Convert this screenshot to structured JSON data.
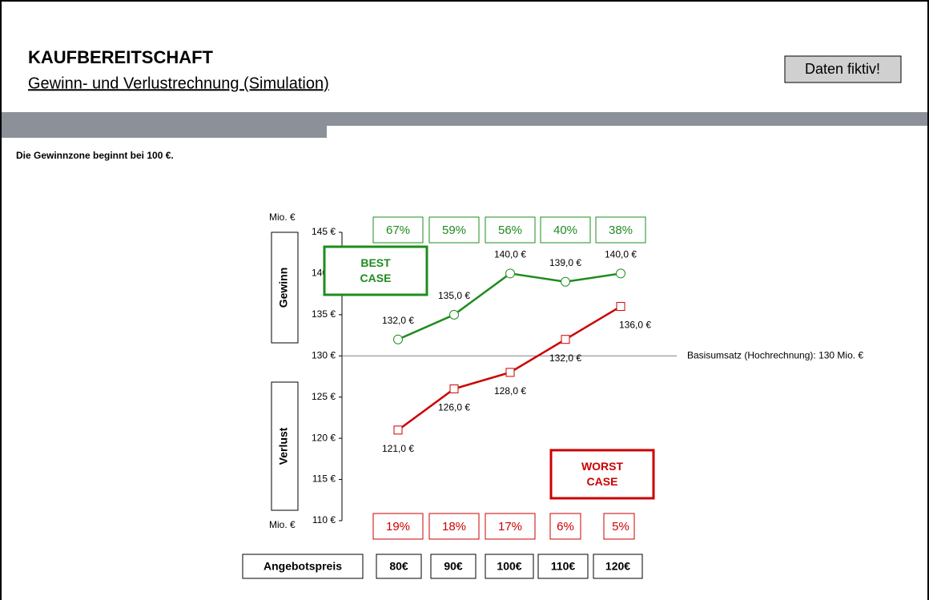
{
  "header": {
    "title": "KAUFBEREITSCHAFT",
    "subtitle": "Gewinn- und Verlustrechnung (Simulation)",
    "badge": "Daten fiktiv!"
  },
  "note": "Die Gewinnzone beginnt bei 100 €.",
  "chart_data": {
    "type": "line",
    "y_label": "Mio. €",
    "x_label": "Angebotspreis",
    "categories": [
      "80€",
      "90€",
      "100€",
      "110€",
      "120€"
    ],
    "ylim": [
      110,
      145
    ],
    "yticks": [
      {
        "value": 110,
        "label": "110 €"
      },
      {
        "value": 115,
        "label": "115 €"
      },
      {
        "value": 120,
        "label": "120 €"
      },
      {
        "value": 125,
        "label": "125 €"
      },
      {
        "value": 130,
        "label": "130 €"
      },
      {
        "value": 135,
        "label": "135 €"
      },
      {
        "value": 140,
        "label": "140 €"
      },
      {
        "value": 145,
        "label": "145 €"
      }
    ],
    "baseline": {
      "value": 130,
      "label": "Basisumsatz (Hochrechnung): 130 Mio. €"
    },
    "zones": {
      "profit": "Gewinn",
      "loss": "Verlust"
    },
    "series": [
      {
        "name": "BEST CASE",
        "color": "#1e8c1e",
        "values": [
          132,
          135,
          140,
          139,
          140
        ],
        "value_labels": [
          "132,0 €",
          "135,0 €",
          "140,0 €",
          "139,0 €",
          "140,0 €"
        ],
        "shares": [
          67,
          59,
          56,
          40,
          38
        ],
        "share_labels": [
          "67%",
          "59%",
          "56%",
          "40%",
          "38%"
        ]
      },
      {
        "name": "WORST CASE",
        "color": "#cc0000",
        "values": [
          121,
          126,
          128,
          132,
          136
        ],
        "value_labels": [
          "121,0 €",
          "126,0 €",
          "128,0 €",
          "132,0 €",
          "136,0 €"
        ],
        "shares": [
          19,
          18,
          17,
          6,
          5
        ],
        "share_labels": [
          "19%",
          "18%",
          "17%",
          "6%",
          "5%"
        ]
      }
    ]
  }
}
